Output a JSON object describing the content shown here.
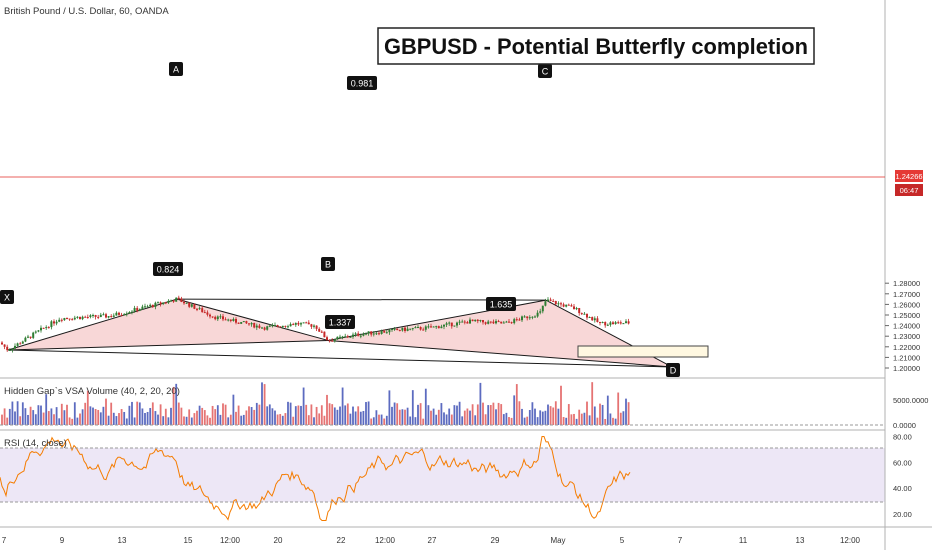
{
  "header": {
    "symbol_line": "British Pound / U.S. Dollar, 60, OANDA",
    "title": "GBPUSD - Potential Butterfly completion"
  },
  "colors": {
    "up_candle": "#2e7d32",
    "down_candle": "#c62828",
    "pattern_fill": "#f6c9c9",
    "pattern_stroke": "#1a1a1a",
    "price_line": "#e53935",
    "rsi_line": "#f57c00",
    "rsi_band": "#ede7f6",
    "vol_up": "#5c6bc0",
    "vol_down": "#e57373",
    "target_box": "#fff8e1"
  },
  "price_axis": {
    "ticks": [
      "1.28000",
      "1.27000",
      "1.26000",
      "1.25000",
      "1.24000",
      "1.23000",
      "1.22000",
      "1.21000",
      "1.20000"
    ],
    "current_price": "1.24266",
    "countdown": "06:47"
  },
  "volume_panel": {
    "label": "Hidden Gap`s VSA Volume (40, 2, 20, 20)",
    "ticks": [
      "5000.0000",
      "0.0000"
    ]
  },
  "rsi_panel": {
    "label": "RSI (14, close)",
    "ticks": [
      "80.00",
      "60.00",
      "40.00",
      "20.00"
    ]
  },
  "time_axis": {
    "ticks": [
      "7",
      "9",
      "13",
      "15",
      "12:00",
      "20",
      "22",
      "12:00",
      "27",
      "29",
      "May",
      "5",
      "7",
      "11",
      "13",
      "12:00"
    ]
  },
  "chart_data": {
    "type": "line",
    "title": "GBPUSD - Potential Butterfly completion",
    "y_range": [
      1.195,
      1.285
    ],
    "pattern_points": [
      {
        "label": "X",
        "price": 1.217
      },
      {
        "label": "A",
        "price": 1.265
      },
      {
        "label": "B",
        "price": 1.226
      },
      {
        "label": "C",
        "price": 1.264
      },
      {
        "label": "D",
        "price": 1.201
      }
    ],
    "ratios": [
      {
        "legs": "X-B",
        "value": "0.824"
      },
      {
        "legs": "A-C",
        "value": "0.981"
      },
      {
        "legs": "B-D",
        "value": "1.635"
      },
      {
        "legs": "X-D",
        "value": "1.337"
      }
    ],
    "last_price": 1.24266,
    "rsi_levels": [
      70,
      30
    ],
    "rsi_range": [
      10,
      85
    ]
  }
}
